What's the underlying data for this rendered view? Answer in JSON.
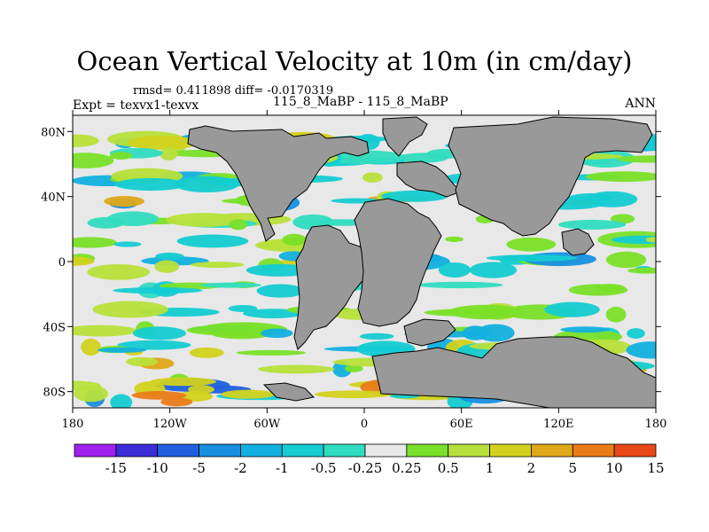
{
  "title": "Ocean Vertical Velocity at 10m (in cm/day)",
  "stats": "rmsd= 0.411898 diff= -0.0170319",
  "expt": "Expt = texvx1-texvx",
  "case_label": "115_8_MaBP - 115_8_MaBP",
  "season": "ANN",
  "lat_ticks": [
    "80N",
    "40N",
    "0",
    "40S",
    "80S"
  ],
  "lon_ticks": [
    "180",
    "120W",
    "60W",
    "0",
    "60E",
    "120E",
    "180"
  ],
  "colorbar": {
    "colors": [
      "#a020f0",
      "#3a2dd8",
      "#2060e0",
      "#1890e0",
      "#12b0e0",
      "#14ccd2",
      "#30dcc0",
      "#e8e8e8",
      "#7ae028",
      "#b8e03a",
      "#d2d21e",
      "#e0a818",
      "#ea7c18",
      "#e84818"
    ],
    "labels": [
      "-15",
      "-10",
      "-5",
      "-2",
      "-1",
      "-0.5",
      "-0.25",
      "0.25",
      "0.5",
      "1",
      "2",
      "5",
      "10",
      "15"
    ]
  },
  "chart_data": {
    "type": "heatmap",
    "title": "Ocean Vertical Velocity at 10m (in cm/day)",
    "variable": "Ocean vertical velocity difference at 10m",
    "units": "cm/day",
    "x_range": [
      -180,
      180
    ],
    "y_range": [
      -90,
      90
    ],
    "contour_levels": [
      -15,
      -10,
      -5,
      -2,
      -1,
      -0.5,
      -0.25,
      0.25,
      0.5,
      1,
      2,
      5,
      10,
      15
    ],
    "land_color": "#999999",
    "ocean_background": "#e8e8e8",
    "rmsd": 0.411898,
    "diff": -0.0170319
  }
}
